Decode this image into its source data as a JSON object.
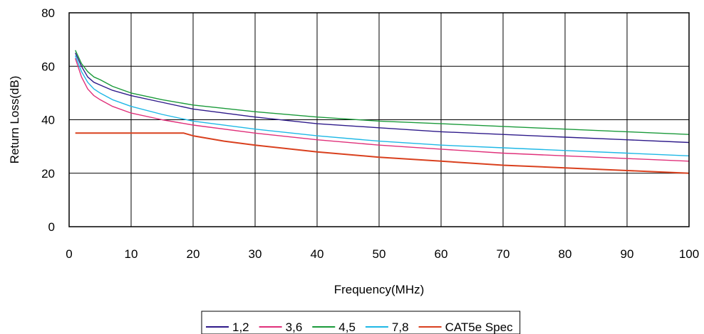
{
  "chart_data": {
    "type": "line",
    "title": "",
    "xlabel": "Frequency(MHz)",
    "ylabel": "Return Loss(dB)",
    "xlim": [
      0,
      100
    ],
    "ylim": [
      0,
      80
    ],
    "xticks": [
      0,
      10,
      20,
      30,
      40,
      50,
      60,
      70,
      80,
      90,
      100
    ],
    "yticks": [
      0,
      20,
      40,
      60,
      80
    ],
    "grid": true,
    "legend": "bottom",
    "series": [
      {
        "name": "1,2",
        "color": "#2E1A8A",
        "x": [
          1,
          2,
          3,
          4,
          5,
          7,
          10,
          15,
          20,
          30,
          40,
          50,
          60,
          70,
          80,
          90,
          100
        ],
        "y": [
          65,
          60,
          56,
          54,
          53,
          51,
          49,
          46.5,
          44,
          41,
          38.5,
          37,
          35.5,
          34.5,
          33.5,
          32.5,
          31.5
        ]
      },
      {
        "name": "3,6",
        "color": "#E0307A",
        "x": [
          1,
          2,
          3,
          4,
          5,
          7,
          10,
          15,
          20,
          30,
          40,
          50,
          60,
          70,
          80,
          90,
          100
        ],
        "y": [
          63,
          56,
          51.5,
          49,
          47.5,
          45,
          42.5,
          40,
          38,
          35,
          32.5,
          30.5,
          29,
          27.5,
          26.5,
          25.5,
          24.5
        ]
      },
      {
        "name": "4,5",
        "color": "#1A9A3A",
        "x": [
          1,
          2,
          3,
          4,
          5,
          7,
          10,
          15,
          20,
          30,
          40,
          50,
          60,
          70,
          80,
          90,
          100
        ],
        "y": [
          66,
          61,
          58,
          56,
          55,
          52.5,
          50,
          47.5,
          45.5,
          43,
          41,
          39.5,
          38.5,
          37.5,
          36.5,
          35.5,
          34.5
        ]
      },
      {
        "name": "7,8",
        "color": "#1EB8E6",
        "x": [
          1,
          2,
          3,
          4,
          5,
          7,
          10,
          15,
          20,
          30,
          40,
          50,
          60,
          70,
          80,
          90,
          100
        ],
        "y": [
          64,
          58,
          54,
          51.5,
          50,
          47.5,
          45,
          42,
          39.5,
          36.5,
          34,
          32,
          30.5,
          29.5,
          28.5,
          27.5,
          26.5
        ]
      },
      {
        "name": "CAT5e Spec",
        "color": "#D9401E",
        "x": [
          1,
          5,
          10,
          15,
          18.5,
          20,
          25,
          30,
          40,
          50,
          60,
          70,
          80,
          90,
          100
        ],
        "y": [
          35,
          35,
          35,
          35,
          35,
          34,
          32,
          30.5,
          28,
          26,
          24.5,
          23,
          22,
          21,
          20
        ]
      }
    ]
  }
}
